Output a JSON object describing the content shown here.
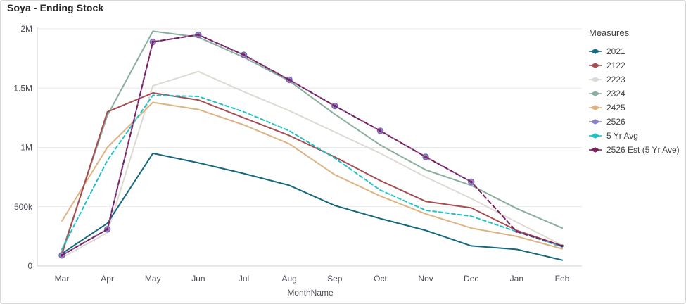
{
  "title": "Soya - Ending Stock",
  "legend": {
    "title": "Measures"
  },
  "chart_data": {
    "type": "line",
    "title": "Soya - Ending Stock",
    "xlabel": "MonthName",
    "ylabel": "",
    "x": [
      "Mar",
      "Apr",
      "May",
      "Jun",
      "Jul",
      "Aug",
      "Sep",
      "Oct",
      "Nov",
      "Dec",
      "Jan",
      "Feb"
    ],
    "ylim": [
      0,
      2000000
    ],
    "grid": true,
    "legend_position": "right",
    "y_ticks": [
      {
        "label": "0",
        "value": 0
      },
      {
        "label": "500k",
        "value": 500000
      },
      {
        "label": "1M",
        "value": 1000000
      },
      {
        "label": "1.5M",
        "value": 1500000
      },
      {
        "label": "2M",
        "value": 2000000
      }
    ],
    "series": [
      {
        "name": "2021",
        "color": "#14687f",
        "style": "solid",
        "marker": "none",
        "values": [
          105000,
          360000,
          950000,
          870000,
          780000,
          680000,
          510000,
          400000,
          300000,
          170000,
          140000,
          50000
        ]
      },
      {
        "name": "2122",
        "color": "#a64d52",
        "style": "solid",
        "marker": "none",
        "values": [
          100000,
          1300000,
          1460000,
          1400000,
          1250000,
          1100000,
          920000,
          720000,
          545000,
          490000,
          300000,
          170000
        ]
      },
      {
        "name": "2223",
        "color": "#dedad3",
        "style": "solid",
        "marker": "none",
        "values": [
          70000,
          280000,
          1520000,
          1640000,
          1470000,
          1310000,
          1130000,
          950000,
          750000,
          570000,
          370000,
          175000
        ]
      },
      {
        "name": "2324",
        "color": "#8aae9d",
        "style": "solid",
        "marker": "none",
        "values": [
          120000,
          1270000,
          1980000,
          1930000,
          1760000,
          1560000,
          1280000,
          1020000,
          810000,
          680000,
          485000,
          320000
        ]
      },
      {
        "name": "2425",
        "color": "#ddb382",
        "style": "solid",
        "marker": "none",
        "values": [
          380000,
          1000000,
          1380000,
          1320000,
          1190000,
          1030000,
          770000,
          590000,
          440000,
          320000,
          250000,
          145000
        ]
      },
      {
        "name": "2526",
        "color": "#8c7dc4",
        "style": "solid",
        "marker": "circle",
        "values": [
          90000,
          310000,
          1890000,
          1950000,
          1780000,
          1570000,
          1350000,
          1140000,
          920000,
          710000,
          null,
          null
        ]
      },
      {
        "name": "5 Yr Avg",
        "color": "#1ec4c8",
        "style": "dashed",
        "marker": "none",
        "values": [
          140000,
          890000,
          1440000,
          1430000,
          1300000,
          1140000,
          910000,
          640000,
          470000,
          420000,
          290000,
          160000
        ]
      },
      {
        "name": "2526 Est (5 Yr Ave)",
        "color": "#7e1f5e",
        "style": "dashed",
        "marker": "dot",
        "values": [
          90000,
          310000,
          1890000,
          1950000,
          1780000,
          1570000,
          1350000,
          1140000,
          920000,
          710000,
          290000,
          170000
        ]
      }
    ]
  }
}
